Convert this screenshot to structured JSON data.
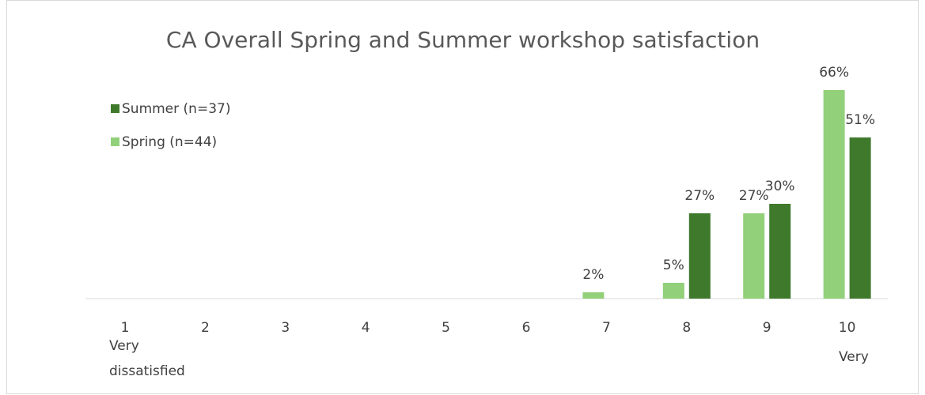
{
  "chart_data": {
    "type": "bar",
    "title": "CA Overall Spring and Summer workshop satisfaction",
    "categories": [
      "1",
      "2",
      "3",
      "4",
      "5",
      "6",
      "7",
      "8",
      "9",
      "10"
    ],
    "series": [
      {
        "name": "Spring (n=44)",
        "color": "#92d07a",
        "values": [
          null,
          null,
          null,
          null,
          null,
          null,
          2,
          5,
          27,
          66
        ],
        "value_labels": [
          null,
          null,
          null,
          null,
          null,
          null,
          "2%",
          "5%",
          "27%",
          "66%"
        ]
      },
      {
        "name": "Summer (n=37)",
        "color": "#3f7a2c",
        "values": [
          null,
          null,
          null,
          null,
          null,
          null,
          null,
          27,
          30,
          51
        ],
        "value_labels": [
          null,
          null,
          null,
          null,
          null,
          null,
          null,
          "27%",
          "30%",
          "51%"
        ]
      }
    ],
    "annotations": [
      "Very",
      "dissatisfied",
      "Very"
    ]
  }
}
